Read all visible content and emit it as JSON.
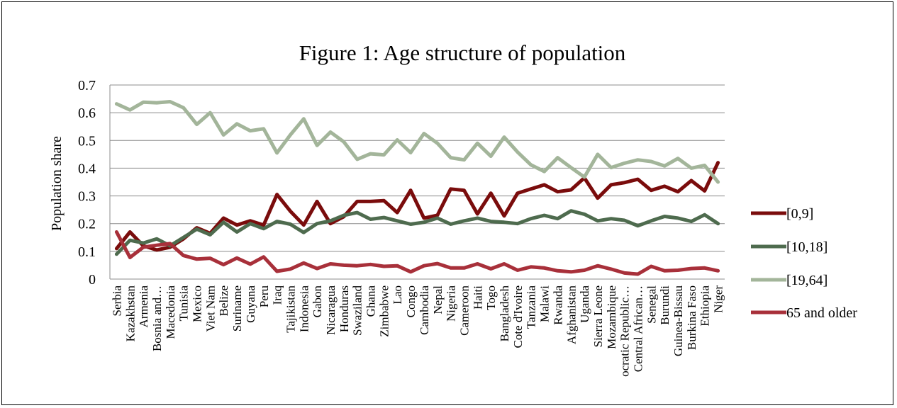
{
  "chart_data": {
    "type": "line",
    "title": "Figure 1: Age structure of population",
    "ylabel": "Population share",
    "xlabel": "",
    "ylim": [
      0,
      0.7
    ],
    "yticks": [
      "0",
      "0.1",
      "0.2",
      "0.3",
      "0.4",
      "0.5",
      "0.6",
      "0.7"
    ],
    "grid": true,
    "legend_position": "right",
    "categories": [
      "Serbia",
      "Kazakhstan",
      "Armenia",
      "Bosnia and…",
      "Macedonia",
      "Tunisia",
      "Mexico",
      "Viet Nam",
      "Belize",
      "Suriname",
      "Guyana",
      "Peru",
      "Iraq",
      "Tajikistan",
      "Indonesia",
      "Gabon",
      "Nicaragua",
      "Honduras",
      "Swaziland",
      "Ghana",
      "Zimbabwe",
      "Lao",
      "Congo",
      "Cambodia",
      "Nepal",
      "Nigeria",
      "Cameroon",
      "Haiti",
      "Togo",
      "Bangladesh",
      "Cote d'Ivoire",
      "Tanzania",
      "Malawi",
      "Rwanda",
      "Afghanistan",
      "Uganda",
      "Sierra Leone",
      "Mozambique",
      "ocratic Republic…",
      "Central African…",
      "Senegal",
      "Burundi",
      "Guinea-Bissau",
      "Burkina Faso",
      "Ethiopia",
      "Niger"
    ],
    "series": [
      {
        "name": "[0,9]",
        "color": "#7a0c0c",
        "values": [
          0.11,
          0.17,
          0.12,
          0.105,
          0.115,
          0.145,
          0.185,
          0.165,
          0.22,
          0.195,
          0.21,
          0.195,
          0.305,
          0.245,
          0.195,
          0.28,
          0.2,
          0.225,
          0.28,
          0.28,
          0.283,
          0.24,
          0.32,
          0.22,
          0.23,
          0.325,
          0.32,
          0.235,
          0.31,
          0.228,
          0.31,
          0.325,
          0.34,
          0.315,
          0.322,
          0.365,
          0.292,
          0.34,
          0.348,
          0.36,
          0.32,
          0.335,
          0.315,
          0.355,
          0.318,
          0.42
        ]
      },
      {
        "name": "[10,18]",
        "color": "#4e6b4e",
        "values": [
          0.09,
          0.14,
          0.13,
          0.145,
          0.12,
          0.15,
          0.18,
          0.16,
          0.205,
          0.17,
          0.2,
          0.182,
          0.208,
          0.198,
          0.168,
          0.2,
          0.21,
          0.23,
          0.24,
          0.216,
          0.222,
          0.21,
          0.198,
          0.205,
          0.22,
          0.198,
          0.21,
          0.22,
          0.208,
          0.205,
          0.2,
          0.218,
          0.23,
          0.218,
          0.246,
          0.234,
          0.21,
          0.218,
          0.212,
          0.192,
          0.21,
          0.226,
          0.22,
          0.208,
          0.232,
          0.2
        ]
      },
      {
        "name": "[19,64]",
        "color": "#a3b59a",
        "values": [
          0.632,
          0.61,
          0.638,
          0.636,
          0.64,
          0.618,
          0.558,
          0.6,
          0.52,
          0.56,
          0.535,
          0.542,
          0.455,
          0.52,
          0.578,
          0.482,
          0.53,
          0.495,
          0.432,
          0.452,
          0.448,
          0.502,
          0.456,
          0.525,
          0.49,
          0.438,
          0.43,
          0.49,
          0.443,
          0.512,
          0.458,
          0.412,
          0.388,
          0.438,
          0.402,
          0.368,
          0.45,
          0.402,
          0.418,
          0.43,
          0.424,
          0.408,
          0.435,
          0.4,
          0.41,
          0.35
        ]
      },
      {
        "name": "65 and older",
        "color": "#a8303a",
        "values": [
          0.17,
          0.078,
          0.115,
          0.122,
          0.128,
          0.085,
          0.072,
          0.075,
          0.052,
          0.076,
          0.054,
          0.08,
          0.028,
          0.036,
          0.058,
          0.038,
          0.055,
          0.05,
          0.048,
          0.053,
          0.046,
          0.048,
          0.026,
          0.048,
          0.056,
          0.04,
          0.04,
          0.055,
          0.037,
          0.055,
          0.032,
          0.044,
          0.04,
          0.03,
          0.026,
          0.032,
          0.048,
          0.036,
          0.022,
          0.018,
          0.046,
          0.03,
          0.032,
          0.038,
          0.04,
          0.03
        ]
      }
    ]
  }
}
